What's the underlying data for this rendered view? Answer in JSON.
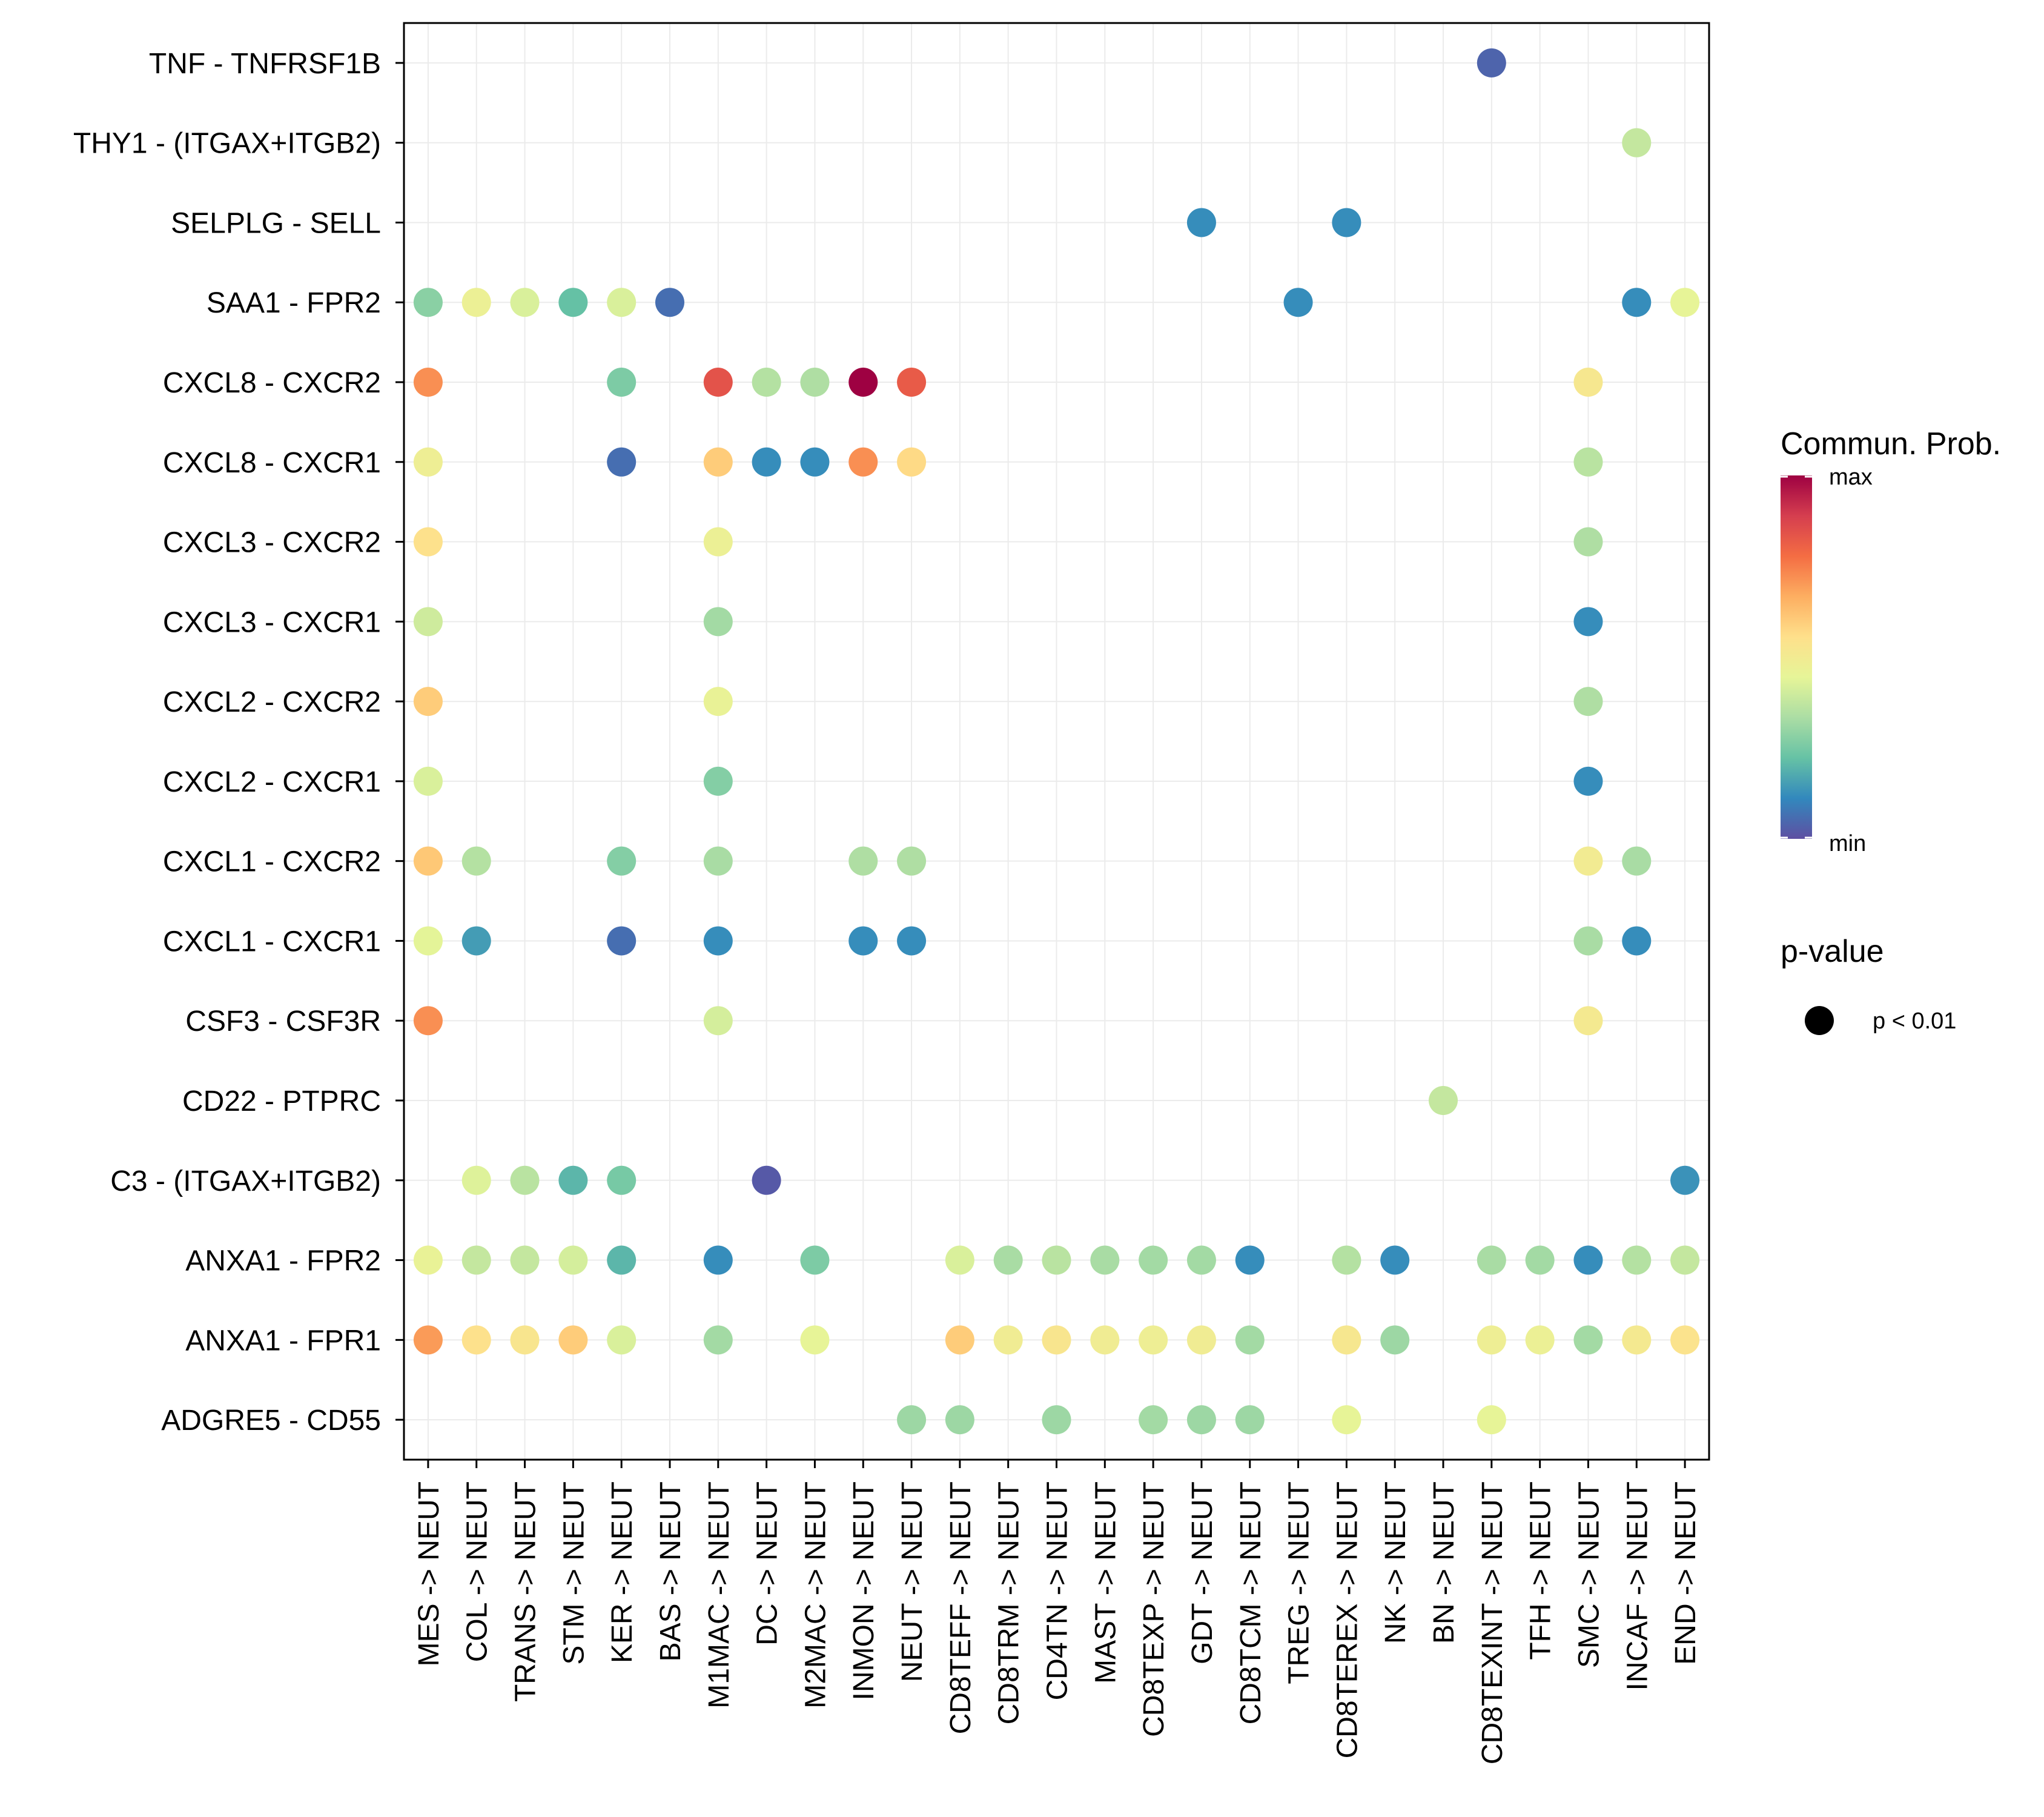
{
  "chart_data": {
    "type": "scatter",
    "subtype": "dot-matrix",
    "title": "",
    "xlabel": "",
    "ylabel": "",
    "x_categories": [
      "MES -> NEUT",
      "COL -> NEUT",
      "TRANS -> NEUT",
      "STM -> NEUT",
      "KER -> NEUT",
      "BAS -> NEUT",
      "M1MAC -> NEUT",
      "DC -> NEUT",
      "M2MAC -> NEUT",
      "INMON -> NEUT",
      "NEUT -> NEUT",
      "CD8TEFF -> NEUT",
      "CD8TRM -> NEUT",
      "CD4TN -> NEUT",
      "MAST -> NEUT",
      "CD8TEXP -> NEUT",
      "GDT -> NEUT",
      "CD8TCM -> NEUT",
      "TREG -> NEUT",
      "CD8TEREX -> NEUT",
      "NK -> NEUT",
      "BN -> NEUT",
      "CD8TEXINT -> NEUT",
      "TFH -> NEUT",
      "SMC -> NEUT",
      "INCAF -> NEUT",
      "END -> NEUT"
    ],
    "y_categories": [
      "TNF - TNFRSF1B",
      "THY1 - (ITGAX+ITGB2)",
      "SELPLG - SELL",
      "SAA1 - FPR2",
      "CXCL8 - CXCR2",
      "CXCL8 - CXCR1",
      "CXCL3 - CXCR2",
      "CXCL3 - CXCR1",
      "CXCL2 - CXCR2",
      "CXCL2 - CXCR1",
      "CXCL1 - CXCR2",
      "CXCL1 - CXCR1",
      "CSF3 - CSF3R",
      "CD22 - PTPRC",
      "C3 - (ITGAX+ITGB2)",
      "ANXA1 - FPR2",
      "ANXA1 - FPR1",
      "ADGRE5 - CD55"
    ],
    "points": [
      {
        "x": "CD8TEXINT -> NEUT",
        "y": "TNF - TNFRSF1B",
        "prob": 0.04
      },
      {
        "x": "INCAF -> NEUT",
        "y": "THY1 - (ITGAX+ITGB2)",
        "prob": 0.38
      },
      {
        "x": "GDT -> NEUT",
        "y": "SELPLG - SELL",
        "prob": 0.12
      },
      {
        "x": "CD8TEREX -> NEUT",
        "y": "SELPLG - SELL",
        "prob": 0.12
      },
      {
        "x": "MES -> NEUT",
        "y": "SAA1 - FPR2",
        "prob": 0.28
      },
      {
        "x": "COL -> NEUT",
        "y": "SAA1 - FPR2",
        "prob": 0.47
      },
      {
        "x": "TRANS -> NEUT",
        "y": "SAA1 - FPR2",
        "prob": 0.42
      },
      {
        "x": "STM -> NEUT",
        "y": "SAA1 - FPR2",
        "prob": 0.22
      },
      {
        "x": "KER -> NEUT",
        "y": "SAA1 - FPR2",
        "prob": 0.42
      },
      {
        "x": "BAS -> NEUT",
        "y": "SAA1 - FPR2",
        "prob": 0.06
      },
      {
        "x": "TREG -> NEUT",
        "y": "SAA1 - FPR2",
        "prob": 0.12
      },
      {
        "x": "INCAF -> NEUT",
        "y": "SAA1 - FPR2",
        "prob": 0.12
      },
      {
        "x": "END -> NEUT",
        "y": "SAA1 - FPR2",
        "prob": 0.45
      },
      {
        "x": "MES -> NEUT",
        "y": "CXCL8 - CXCR2",
        "prob": 0.72
      },
      {
        "x": "KER -> NEUT",
        "y": "CXCL8 - CXCR2",
        "prob": 0.26
      },
      {
        "x": "M1MAC -> NEUT",
        "y": "CXCL8 - CXCR2",
        "prob": 0.84
      },
      {
        "x": "DC -> NEUT",
        "y": "CXCL8 - CXCR2",
        "prob": 0.35
      },
      {
        "x": "M2MAC -> NEUT",
        "y": "CXCL8 - CXCR2",
        "prob": 0.34
      },
      {
        "x": "INMON -> NEUT",
        "y": "CXCL8 - CXCR2",
        "prob": 1.0
      },
      {
        "x": "NEUT -> NEUT",
        "y": "CXCL8 - CXCR2",
        "prob": 0.82
      },
      {
        "x": "SMC -> NEUT",
        "y": "CXCL8 - CXCR2",
        "prob": 0.52
      },
      {
        "x": "MES -> NEUT",
        "y": "CXCL8 - CXCR1",
        "prob": 0.48
      },
      {
        "x": "KER -> NEUT",
        "y": "CXCL8 - CXCR1",
        "prob": 0.06
      },
      {
        "x": "M1MAC -> NEUT",
        "y": "CXCL8 - CXCR1",
        "prob": 0.6
      },
      {
        "x": "DC -> NEUT",
        "y": "CXCL8 - CXCR1",
        "prob": 0.12
      },
      {
        "x": "M2MAC -> NEUT",
        "y": "CXCL8 - CXCR1",
        "prob": 0.12
      },
      {
        "x": "INMON -> NEUT",
        "y": "CXCL8 - CXCR1",
        "prob": 0.72
      },
      {
        "x": "NEUT -> NEUT",
        "y": "CXCL8 - CXCR1",
        "prob": 0.57
      },
      {
        "x": "SMC -> NEUT",
        "y": "CXCL8 - CXCR1",
        "prob": 0.36
      },
      {
        "x": "MES -> NEUT",
        "y": "CXCL3 - CXCR2",
        "prob": 0.55
      },
      {
        "x": "M1MAC -> NEUT",
        "y": "CXCL3 - CXCR2",
        "prob": 0.47
      },
      {
        "x": "SMC -> NEUT",
        "y": "CXCL3 - CXCR2",
        "prob": 0.34
      },
      {
        "x": "MES -> NEUT",
        "y": "CXCL3 - CXCR1",
        "prob": 0.4
      },
      {
        "x": "M1MAC -> NEUT",
        "y": "CXCL3 - CXCR1",
        "prob": 0.32
      },
      {
        "x": "SMC -> NEUT",
        "y": "CXCL3 - CXCR1",
        "prob": 0.12
      },
      {
        "x": "MES -> NEUT",
        "y": "CXCL2 - CXCR2",
        "prob": 0.6
      },
      {
        "x": "M1MAC -> NEUT",
        "y": "CXCL2 - CXCR2",
        "prob": 0.46
      },
      {
        "x": "SMC -> NEUT",
        "y": "CXCL2 - CXCR2",
        "prob": 0.34
      },
      {
        "x": "MES -> NEUT",
        "y": "CXCL2 - CXCR1",
        "prob": 0.42
      },
      {
        "x": "M1MAC -> NEUT",
        "y": "CXCL2 - CXCR1",
        "prob": 0.27
      },
      {
        "x": "SMC -> NEUT",
        "y": "CXCL2 - CXCR1",
        "prob": 0.12
      },
      {
        "x": "MES -> NEUT",
        "y": "CXCL1 - CXCR2",
        "prob": 0.61
      },
      {
        "x": "COL -> NEUT",
        "y": "CXCL1 - CXCR2",
        "prob": 0.35
      },
      {
        "x": "KER -> NEUT",
        "y": "CXCL1 - CXCR2",
        "prob": 0.27
      },
      {
        "x": "M1MAC -> NEUT",
        "y": "CXCL1 - CXCR2",
        "prob": 0.33
      },
      {
        "x": "INMON -> NEUT",
        "y": "CXCL1 - CXCR2",
        "prob": 0.34
      },
      {
        "x": "NEUT -> NEUT",
        "y": "CXCL1 - CXCR2",
        "prob": 0.34
      },
      {
        "x": "SMC -> NEUT",
        "y": "CXCL1 - CXCR2",
        "prob": 0.5
      },
      {
        "x": "INCAF -> NEUT",
        "y": "CXCL1 - CXCR2",
        "prob": 0.33
      },
      {
        "x": "MES -> NEUT",
        "y": "CXCL1 - CXCR1",
        "prob": 0.44
      },
      {
        "x": "COL -> NEUT",
        "y": "CXCL1 - CXCR1",
        "prob": 0.15
      },
      {
        "x": "KER -> NEUT",
        "y": "CXCL1 - CXCR1",
        "prob": 0.06
      },
      {
        "x": "M1MAC -> NEUT",
        "y": "CXCL1 - CXCR1",
        "prob": 0.12
      },
      {
        "x": "INMON -> NEUT",
        "y": "CXCL1 - CXCR1",
        "prob": 0.12
      },
      {
        "x": "NEUT -> NEUT",
        "y": "CXCL1 - CXCR1",
        "prob": 0.12
      },
      {
        "x": "SMC -> NEUT",
        "y": "CXCL1 - CXCR1",
        "prob": 0.33
      },
      {
        "x": "INCAF -> NEUT",
        "y": "CXCL1 - CXCR1",
        "prob": 0.12
      },
      {
        "x": "MES -> NEUT",
        "y": "CSF3 - CSF3R",
        "prob": 0.72
      },
      {
        "x": "M1MAC -> NEUT",
        "y": "CSF3 - CSF3R",
        "prob": 0.41
      },
      {
        "x": "SMC -> NEUT",
        "y": "CSF3 - CSF3R",
        "prob": 0.51
      },
      {
        "x": "BN -> NEUT",
        "y": "CD22 - PTPRC",
        "prob": 0.38
      },
      {
        "x": "COL -> NEUT",
        "y": "C3 - (ITGAX+ITGB2)",
        "prob": 0.43
      },
      {
        "x": "TRANS -> NEUT",
        "y": "C3 - (ITGAX+ITGB2)",
        "prob": 0.36
      },
      {
        "x": "STM -> NEUT",
        "y": "C3 - (ITGAX+ITGB2)",
        "prob": 0.2
      },
      {
        "x": "KER -> NEUT",
        "y": "C3 - (ITGAX+ITGB2)",
        "prob": 0.25
      },
      {
        "x": "DC -> NEUT",
        "y": "C3 - (ITGAX+ITGB2)",
        "prob": 0.02
      },
      {
        "x": "END -> NEUT",
        "y": "C3 - (ITGAX+ITGB2)",
        "prob": 0.13
      },
      {
        "x": "MES -> NEUT",
        "y": "ANXA1 - FPR2",
        "prob": 0.46
      },
      {
        "x": "COL -> NEUT",
        "y": "ANXA1 - FPR2",
        "prob": 0.38
      },
      {
        "x": "TRANS -> NEUT",
        "y": "ANXA1 - FPR2",
        "prob": 0.38
      },
      {
        "x": "STM -> NEUT",
        "y": "ANXA1 - FPR2",
        "prob": 0.41
      },
      {
        "x": "KER -> NEUT",
        "y": "ANXA1 - FPR2",
        "prob": 0.2
      },
      {
        "x": "M1MAC -> NEUT",
        "y": "ANXA1 - FPR2",
        "prob": 0.12
      },
      {
        "x": "M2MAC -> NEUT",
        "y": "ANXA1 - FPR2",
        "prob": 0.26
      },
      {
        "x": "CD8TEFF -> NEUT",
        "y": "ANXA1 - FPR2",
        "prob": 0.42
      },
      {
        "x": "CD8TRM -> NEUT",
        "y": "ANXA1 - FPR2",
        "prob": 0.33
      },
      {
        "x": "CD4TN -> NEUT",
        "y": "ANXA1 - FPR2",
        "prob": 0.36
      },
      {
        "x": "MAST -> NEUT",
        "y": "ANXA1 - FPR2",
        "prob": 0.33
      },
      {
        "x": "CD8TEXP -> NEUT",
        "y": "ANXA1 - FPR2",
        "prob": 0.32
      },
      {
        "x": "GDT -> NEUT",
        "y": "ANXA1 - FPR2",
        "prob": 0.32
      },
      {
        "x": "CD8TCM -> NEUT",
        "y": "ANXA1 - FPR2",
        "prob": 0.12
      },
      {
        "x": "CD8TEREX -> NEUT",
        "y": "ANXA1 - FPR2",
        "prob": 0.35
      },
      {
        "x": "NK -> NEUT",
        "y": "ANXA1 - FPR2",
        "prob": 0.12
      },
      {
        "x": "CD8TEXINT -> NEUT",
        "y": "ANXA1 - FPR2",
        "prob": 0.33
      },
      {
        "x": "TFH -> NEUT",
        "y": "ANXA1 - FPR2",
        "prob": 0.32
      },
      {
        "x": "SMC -> NEUT",
        "y": "ANXA1 - FPR2",
        "prob": 0.12
      },
      {
        "x": "INCAF -> NEUT",
        "y": "ANXA1 - FPR2",
        "prob": 0.35
      },
      {
        "x": "END -> NEUT",
        "y": "ANXA1 - FPR2",
        "prob": 0.38
      },
      {
        "x": "MES -> NEUT",
        "y": "ANXA1 - FPR1",
        "prob": 0.7
      },
      {
        "x": "COL -> NEUT",
        "y": "ANXA1 - FPR1",
        "prob": 0.55
      },
      {
        "x": "TRANS -> NEUT",
        "y": "ANXA1 - FPR1",
        "prob": 0.53
      },
      {
        "x": "STM -> NEUT",
        "y": "ANXA1 - FPR1",
        "prob": 0.6
      },
      {
        "x": "KER -> NEUT",
        "y": "ANXA1 - FPR1",
        "prob": 0.42
      },
      {
        "x": "M1MAC -> NEUT",
        "y": "ANXA1 - FPR1",
        "prob": 0.32
      },
      {
        "x": "M2MAC -> NEUT",
        "y": "ANXA1 - FPR1",
        "prob": 0.45
      },
      {
        "x": "CD8TEFF -> NEUT",
        "y": "ANXA1 - FPR1",
        "prob": 0.6
      },
      {
        "x": "CD8TRM -> NEUT",
        "y": "ANXA1 - FPR1",
        "prob": 0.49
      },
      {
        "x": "CD4TN -> NEUT",
        "y": "ANXA1 - FPR1",
        "prob": 0.53
      },
      {
        "x": "MAST -> NEUT",
        "y": "ANXA1 - FPR1",
        "prob": 0.49
      },
      {
        "x": "CD8TEXP -> NEUT",
        "y": "ANXA1 - FPR1",
        "prob": 0.48
      },
      {
        "x": "GDT -> NEUT",
        "y": "ANXA1 - FPR1",
        "prob": 0.49
      },
      {
        "x": "CD8TCM -> NEUT",
        "y": "ANXA1 - FPR1",
        "prob": 0.32
      },
      {
        "x": "CD8TEREX -> NEUT",
        "y": "ANXA1 - FPR1",
        "prob": 0.52
      },
      {
        "x": "NK -> NEUT",
        "y": "ANXA1 - FPR1",
        "prob": 0.31
      },
      {
        "x": "CD8TEXINT -> NEUT",
        "y": "ANXA1 - FPR1",
        "prob": 0.48
      },
      {
        "x": "TFH -> NEUT",
        "y": "ANXA1 - FPR1",
        "prob": 0.47
      },
      {
        "x": "SMC -> NEUT",
        "y": "ANXA1 - FPR1",
        "prob": 0.32
      },
      {
        "x": "INCAF -> NEUT",
        "y": "ANXA1 - FPR1",
        "prob": 0.51
      },
      {
        "x": "END -> NEUT",
        "y": "ANXA1 - FPR1",
        "prob": 0.54
      },
      {
        "x": "NEUT -> NEUT",
        "y": "ADGRE5 - CD55",
        "prob": 0.31
      },
      {
        "x": "CD8TEFF -> NEUT",
        "y": "ADGRE5 - CD55",
        "prob": 0.31
      },
      {
        "x": "CD4TN -> NEUT",
        "y": "ADGRE5 - CD55",
        "prob": 0.31
      },
      {
        "x": "CD8TEXP -> NEUT",
        "y": "ADGRE5 - CD55",
        "prob": 0.32
      },
      {
        "x": "GDT -> NEUT",
        "y": "ADGRE5 - CD55",
        "prob": 0.31
      },
      {
        "x": "CD8TCM -> NEUT",
        "y": "ADGRE5 - CD55",
        "prob": 0.31
      },
      {
        "x": "CD8TEREX -> NEUT",
        "y": "ADGRE5 - CD55",
        "prob": 0.45
      },
      {
        "x": "CD8TEXINT -> NEUT",
        "y": "ADGRE5 - CD55",
        "prob": 0.45
      }
    ],
    "colorbar": {
      "title": "Commun. Prob.",
      "max_label": "max",
      "min_label": "min",
      "colors": [
        "#5E4FA2",
        "#3288BD",
        "#66C2A5",
        "#ABDDA4",
        "#E6F598",
        "#FEE08B",
        "#FDAE61",
        "#F46D43",
        "#D53E4F",
        "#9E0142"
      ]
    },
    "size_legend": {
      "title": "p-value",
      "label": "p < 0.01"
    }
  }
}
